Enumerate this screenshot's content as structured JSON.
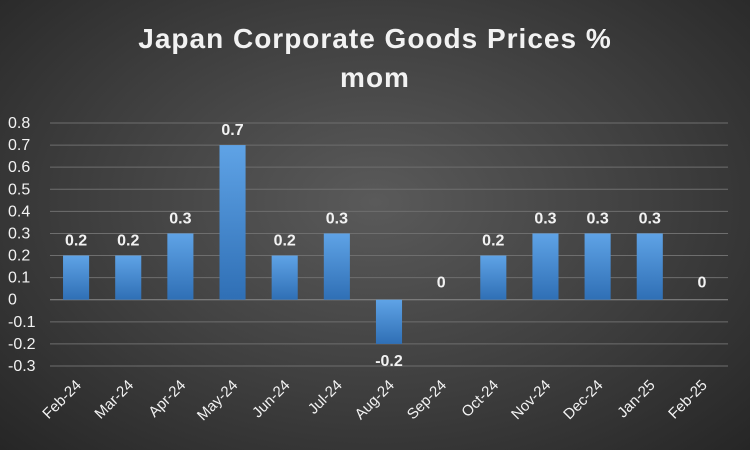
{
  "chart_data": {
    "type": "bar",
    "title_line1": "Japan Corporate Goods Prices %",
    "title_line2": "mom",
    "categories": [
      "Feb-24",
      "Mar-24",
      "Apr-24",
      "May-24",
      "Jun-24",
      "Jul-24",
      "Aug-24",
      "Sep-24",
      "Oct-24",
      "Nov-24",
      "Dec-24",
      "Jan-25",
      "Feb-25"
    ],
    "values": [
      0.2,
      0.2,
      0.3,
      0.7,
      0.2,
      0.3,
      -0.2,
      0,
      0.2,
      0.3,
      0.3,
      0.3,
      0
    ],
    "data_labels": [
      "0.2",
      "0.2",
      "0.3",
      "0.7",
      "0.2",
      "0.3",
      "-0.2",
      "0",
      "0.2",
      "0.3",
      "0.3",
      "0.3",
      "0"
    ],
    "y_ticks": [
      0.8,
      0.7,
      0.6,
      0.5,
      0.4,
      0.3,
      0.2,
      0.1,
      0,
      -0.1,
      -0.2,
      -0.3
    ],
    "y_tick_labels": [
      "0.8",
      "0.7",
      "0.6",
      "0.5",
      "0.4",
      "0.3",
      "0.2",
      "0.1",
      "0",
      "-0.1",
      "-0.2",
      "-0.3"
    ],
    "ylim": [
      -0.3,
      0.8
    ],
    "grid": true,
    "legend": "none",
    "colors": {
      "bar_top": "#5fa3e6",
      "bar_bottom": "#2f6fb5"
    }
  }
}
